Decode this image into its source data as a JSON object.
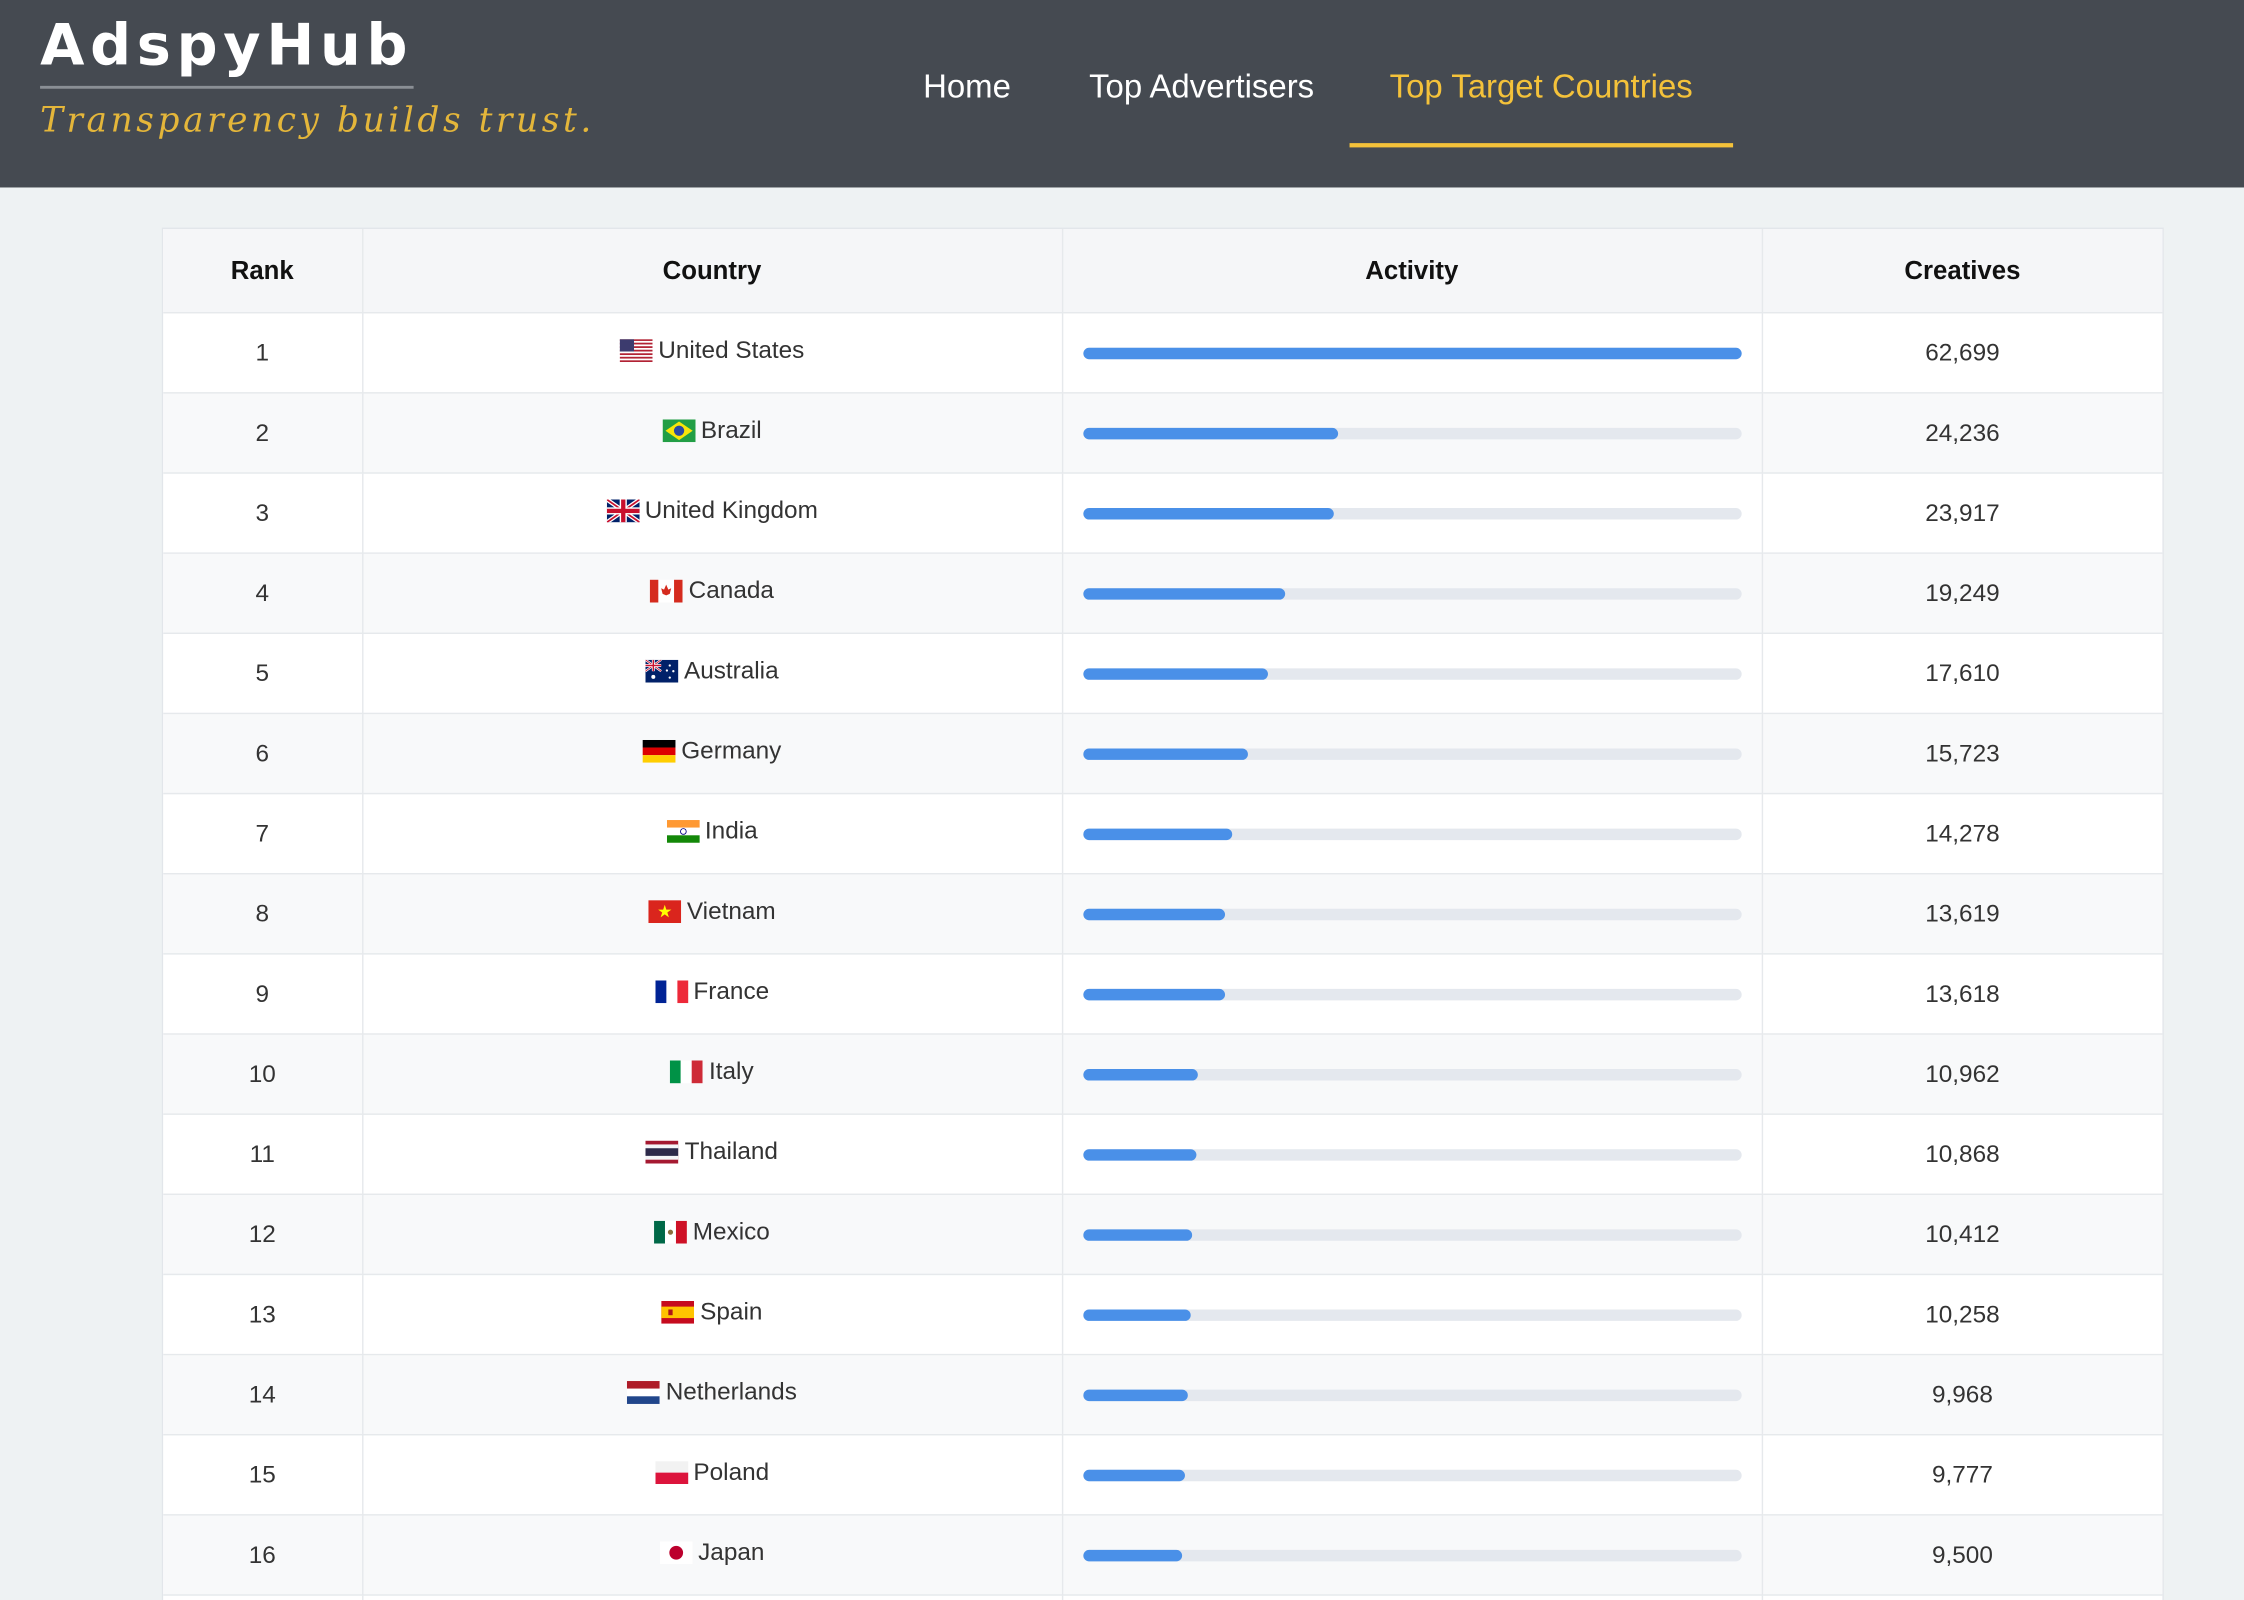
{
  "brand": {
    "name": "AdspyHub",
    "tagline": "Transparency builds trust."
  },
  "nav": [
    {
      "label": "Home",
      "active": false
    },
    {
      "label": "Top Advertisers",
      "active": false
    },
    {
      "label": "Top Target Countries",
      "active": true
    }
  ],
  "colors": {
    "header_bg": "#454a51",
    "accent": "#f4c23a",
    "bar": "#4a90e8",
    "bar_track": "#e4e8ee"
  },
  "table": {
    "headers": {
      "rank": "Rank",
      "country": "Country",
      "activity": "Activity",
      "creatives": "Creatives"
    },
    "rows": [
      {
        "rank": "1",
        "country": "United States",
        "flag": "us-flag-icon",
        "activity": 1.0,
        "creatives": "62,699"
      },
      {
        "rank": "2",
        "country": "Brazil",
        "flag": "br-flag-icon",
        "activity": 0.387,
        "creatives": "24,236"
      },
      {
        "rank": "3",
        "country": "United Kingdom",
        "flag": "gb-flag-icon",
        "activity": 0.381,
        "creatives": "23,917"
      },
      {
        "rank": "4",
        "country": "Canada",
        "flag": "ca-flag-icon",
        "activity": 0.307,
        "creatives": "19,249"
      },
      {
        "rank": "5",
        "country": "Australia",
        "flag": "au-flag-icon",
        "activity": 0.281,
        "creatives": "17,610"
      },
      {
        "rank": "6",
        "country": "Germany",
        "flag": "de-flag-icon",
        "activity": 0.251,
        "creatives": "15,723"
      },
      {
        "rank": "7",
        "country": "India",
        "flag": "in-flag-icon",
        "activity": 0.228,
        "creatives": "14,278"
      },
      {
        "rank": "8",
        "country": "Vietnam",
        "flag": "vn-flag-icon",
        "activity": 0.217,
        "creatives": "13,619"
      },
      {
        "rank": "9",
        "country": "France",
        "flag": "fr-flag-icon",
        "activity": 0.217,
        "creatives": "13,618"
      },
      {
        "rank": "10",
        "country": "Italy",
        "flag": "it-flag-icon",
        "activity": 0.175,
        "creatives": "10,962"
      },
      {
        "rank": "11",
        "country": "Thailand",
        "flag": "th-flag-icon",
        "activity": 0.173,
        "creatives": "10,868"
      },
      {
        "rank": "12",
        "country": "Mexico",
        "flag": "mx-flag-icon",
        "activity": 0.166,
        "creatives": "10,412"
      },
      {
        "rank": "13",
        "country": "Spain",
        "flag": "es-flag-icon",
        "activity": 0.164,
        "creatives": "10,258"
      },
      {
        "rank": "14",
        "country": "Netherlands",
        "flag": "nl-flag-icon",
        "activity": 0.159,
        "creatives": "9,968"
      },
      {
        "rank": "15",
        "country": "Poland",
        "flag": "pl-flag-icon",
        "activity": 0.156,
        "creatives": "9,777"
      },
      {
        "rank": "16",
        "country": "Japan",
        "flag": "jp-flag-icon",
        "activity": 0.152,
        "creatives": "9,500"
      },
      {
        "rank": "",
        "country": "",
        "flag": "",
        "activity": 0,
        "creatives": ""
      }
    ]
  }
}
